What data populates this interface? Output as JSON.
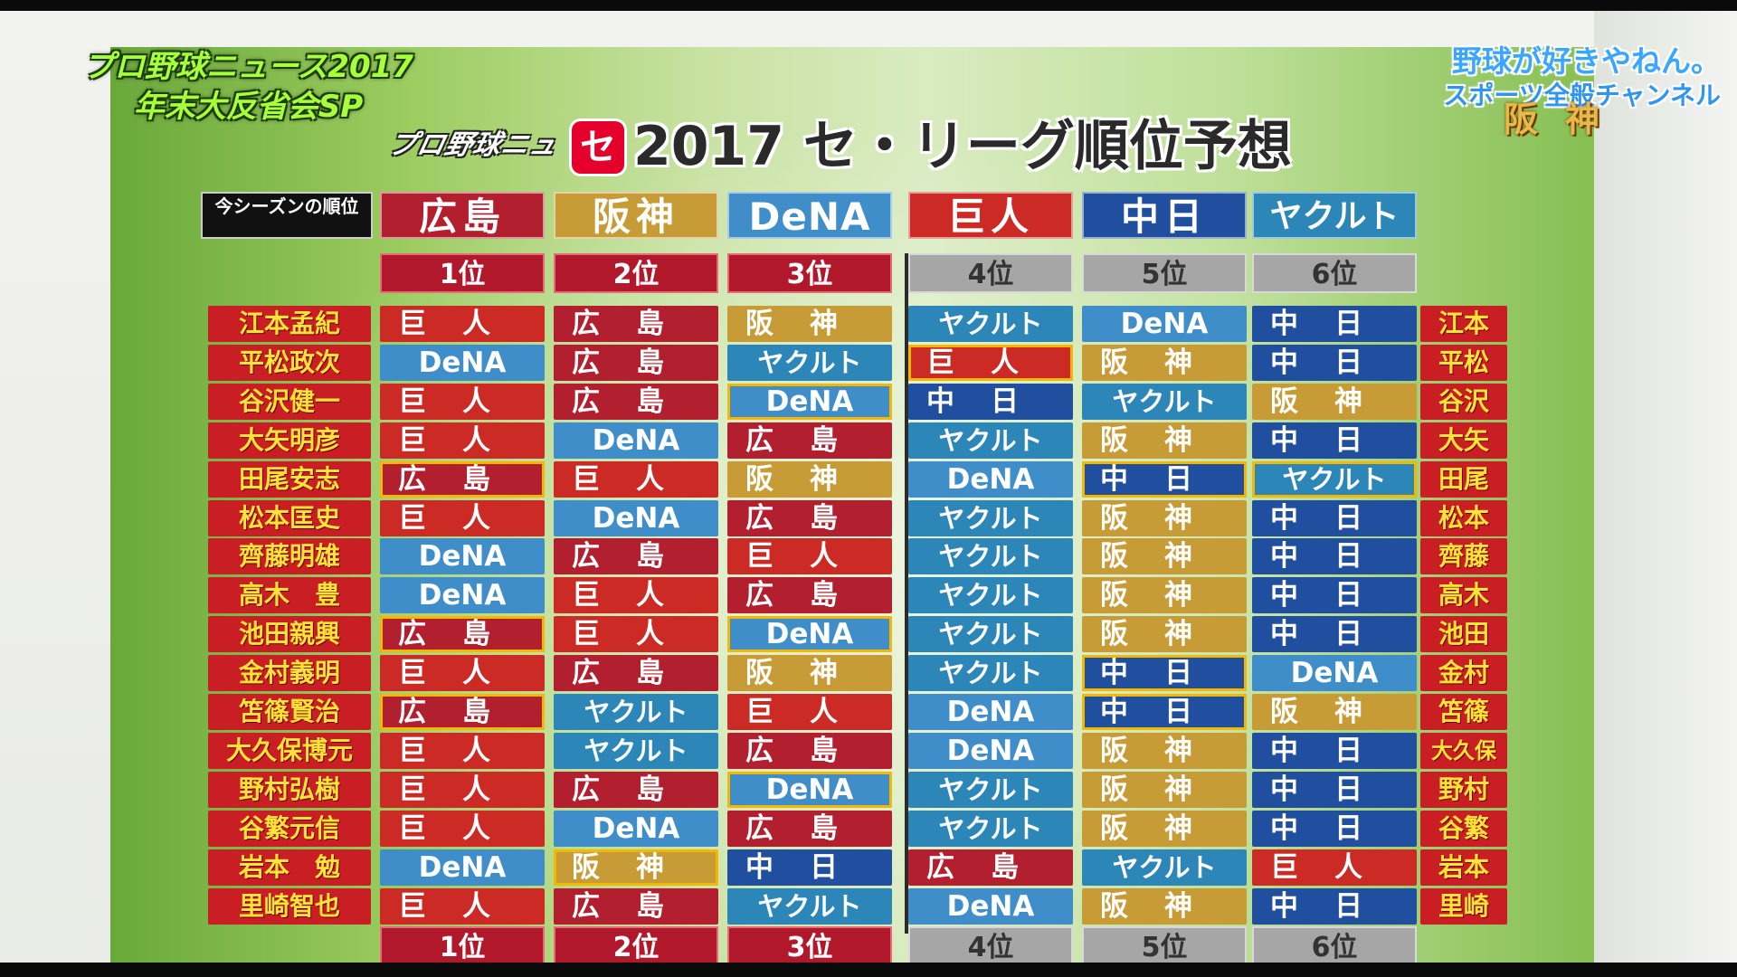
{
  "show": {
    "line1": "プロ野球ニュース2017",
    "line2": "年末大反省会SP"
  },
  "logo": "プロ野球ニュース",
  "channel": {
    "line1": "野球が好きやねん。",
    "line2": "スポーツ全般チャンネル"
  },
  "team_badge": "阪神",
  "title": {
    "mark": "セ",
    "text": "2017 セ・リーグ順位予想"
  },
  "header": {
    "label": "今シーズンの順位",
    "teams": [
      "広島",
      "阪神",
      "DeNA",
      "巨人",
      "中日",
      "ヤクルト"
    ],
    "ranks": [
      "1位",
      "2位",
      "3位",
      "4位",
      "5位",
      "6位"
    ]
  },
  "colors": {
    "広島": "#b21f2e",
    "阪神": "#c79c37",
    "DeNA": "#3f8ec9",
    "巨人": "#cc2a24",
    "中日": "#1f4f9e",
    "ヤクルト": "#2c87b8",
    "highlight": "#f5b800"
  },
  "predictions": [
    {
      "name": "江本孟紀",
      "short": "江本",
      "picks": [
        "巨人",
        "広島",
        "阪神",
        "ヤクルト",
        "DeNA",
        "中日"
      ],
      "hits": []
    },
    {
      "name": "平松政次",
      "short": "平松",
      "picks": [
        "DeNA",
        "広島",
        "ヤクルト",
        "巨人",
        "阪神",
        "中日"
      ],
      "hits": [
        3
      ]
    },
    {
      "name": "谷沢健一",
      "short": "谷沢",
      "picks": [
        "巨人",
        "広島",
        "DeNA",
        "中日",
        "ヤクルト",
        "阪神"
      ],
      "hits": [
        2
      ]
    },
    {
      "name": "大矢明彦",
      "short": "大矢",
      "picks": [
        "巨人",
        "DeNA",
        "広島",
        "ヤクルト",
        "阪神",
        "中日"
      ],
      "hits": []
    },
    {
      "name": "田尾安志",
      "short": "田尾",
      "picks": [
        "広島",
        "巨人",
        "阪神",
        "DeNA",
        "中日",
        "ヤクルト"
      ],
      "hits": [
        0,
        4,
        5
      ]
    },
    {
      "name": "松本匡史",
      "short": "松本",
      "picks": [
        "巨人",
        "DeNA",
        "広島",
        "ヤクルト",
        "阪神",
        "中日"
      ],
      "hits": []
    },
    {
      "name": "齊藤明雄",
      "short": "齊藤",
      "picks": [
        "DeNA",
        "広島",
        "巨人",
        "ヤクルト",
        "阪神",
        "中日"
      ],
      "hits": []
    },
    {
      "name": "高木　豊",
      "short": "高木",
      "picks": [
        "DeNA",
        "巨人",
        "広島",
        "ヤクルト",
        "阪神",
        "中日"
      ],
      "hits": []
    },
    {
      "name": "池田親興",
      "short": "池田",
      "picks": [
        "広島",
        "巨人",
        "DeNA",
        "ヤクルト",
        "阪神",
        "中日"
      ],
      "hits": [
        0,
        2
      ]
    },
    {
      "name": "金村義明",
      "short": "金村",
      "picks": [
        "巨人",
        "広島",
        "阪神",
        "ヤクルト",
        "中日",
        "DeNA"
      ],
      "hits": [
        4
      ]
    },
    {
      "name": "笘篠賢治",
      "short": "笘篠",
      "picks": [
        "広島",
        "ヤクルト",
        "巨人",
        "DeNA",
        "中日",
        "阪神"
      ],
      "hits": [
        0,
        4
      ]
    },
    {
      "name": "大久保博元",
      "short": "大久保",
      "picks": [
        "巨人",
        "ヤクルト",
        "広島",
        "DeNA",
        "阪神",
        "中日"
      ],
      "hits": []
    },
    {
      "name": "野村弘樹",
      "short": "野村",
      "picks": [
        "巨人",
        "広島",
        "DeNA",
        "ヤクルト",
        "阪神",
        "中日"
      ],
      "hits": [
        2
      ]
    },
    {
      "name": "谷繁元信",
      "short": "谷繁",
      "picks": [
        "巨人",
        "DeNA",
        "広島",
        "ヤクルト",
        "阪神",
        "中日"
      ],
      "hits": []
    },
    {
      "name": "岩本　勉",
      "short": "岩本",
      "picks": [
        "DeNA",
        "阪神",
        "中日",
        "広島",
        "ヤクルト",
        "巨人"
      ],
      "hits": [
        1
      ]
    },
    {
      "name": "里崎智也",
      "short": "里崎",
      "picks": [
        "巨人",
        "広島",
        "ヤクルト",
        "DeNA",
        "阪神",
        "中日"
      ],
      "hits": []
    }
  ]
}
